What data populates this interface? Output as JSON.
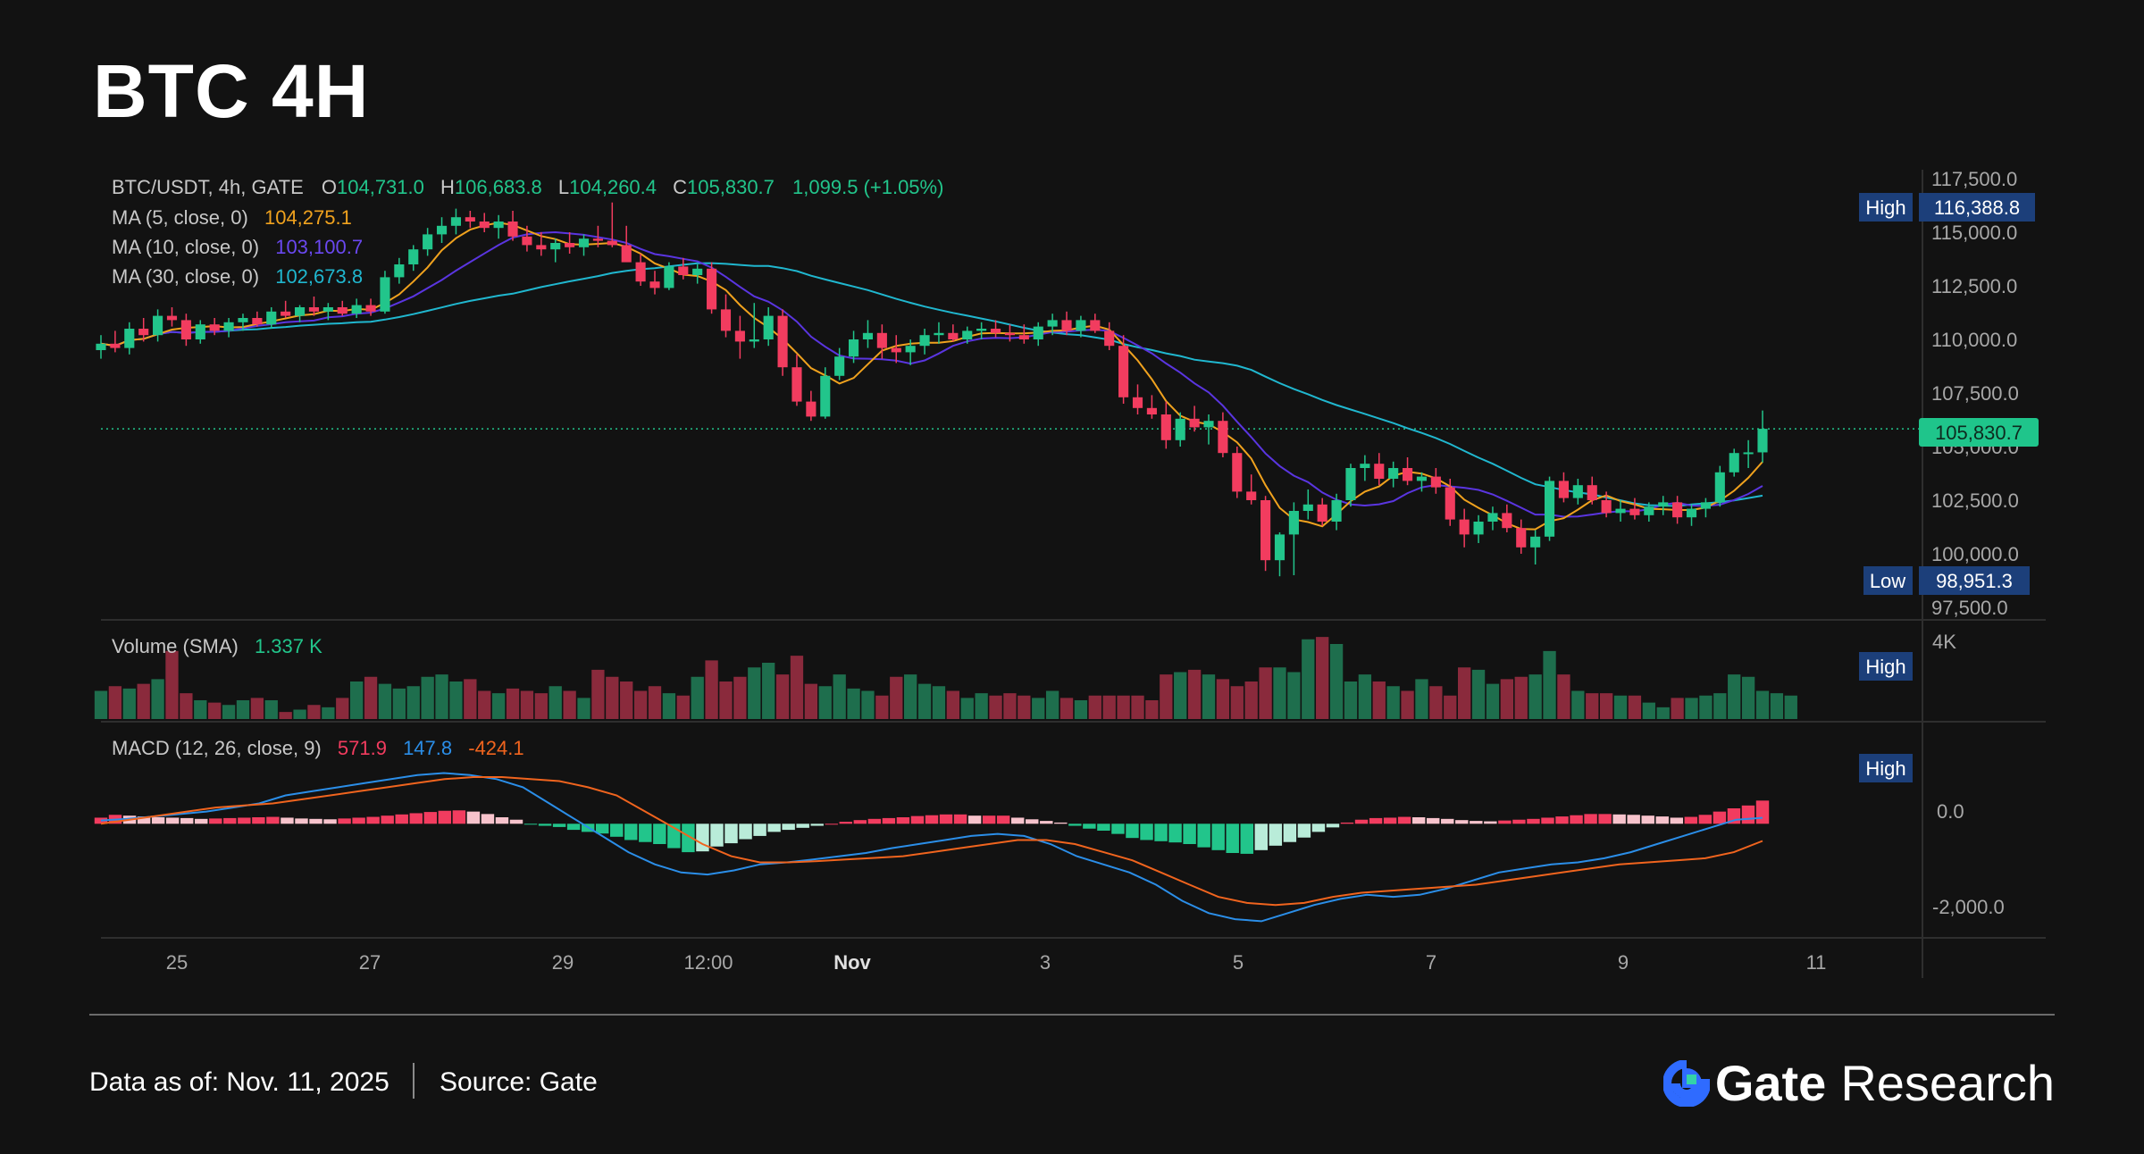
{
  "title": "BTC 4H",
  "legend": {
    "symbol": "BTC/USDT, 4h, GATE",
    "o_label": "O",
    "o_value": "104,731.0",
    "h_label": "H",
    "h_value": "106,683.8",
    "l_label": "L",
    "l_value": "104,260.4",
    "c_label": "C",
    "c_value": "105,830.7",
    "change": "1,099.5 (+1.05%)",
    "ma5_label": "MA (5, close, 0)",
    "ma5_value": "104,275.1",
    "ma10_label": "MA (10, close, 0)",
    "ma10_value": "103,100.7",
    "ma30_label": "MA (30, close, 0)",
    "ma30_value": "102,673.8"
  },
  "price_axis": {
    "ticks": [
      "117,500.0",
      "115,000.0",
      "112,500.0",
      "110,000.0",
      "107,500.0",
      "105,000.0",
      "102,500.0",
      "100,000.0",
      "97,500.0"
    ],
    "high_label": "High",
    "high_value": "116,388.8",
    "low_label": "Low",
    "low_value": "98,951.3",
    "last_value": "105,830.7"
  },
  "volume": {
    "label": "Volume (SMA)",
    "value": "1.337 K",
    "axis_tick": "4K",
    "high_label": "High"
  },
  "macd": {
    "label": "MACD (12, 26, close, 9)",
    "hist_value": "571.9",
    "macd_value": "147.8",
    "signal_value": "-424.1",
    "axis_ticks": [
      "0.0",
      "-2,000.0"
    ],
    "high_label": "High"
  },
  "time_axis": {
    "labels": [
      "25",
      "27",
      "29",
      "12:00",
      "Nov",
      "3",
      "5",
      "7",
      "9",
      "11"
    ]
  },
  "footer": {
    "date": "Data as of: Nov. 11, 2025",
    "source": "Source:  Gate",
    "brand_name": "Gate",
    "brand_sub": "Research"
  },
  "colors": {
    "up": "#22c58b",
    "down": "#f23c5f",
    "ma5": "#f0a21e",
    "ma10": "#5a35e0",
    "ma30": "#20b7cf",
    "macd": "#2b8ee8",
    "signal": "#f0641e"
  },
  "chart_data": {
    "type": "candlestick",
    "interval": "4h",
    "ylim": [
      97500,
      117500
    ],
    "candles": [
      [
        109500,
        110200,
        109100,
        109800
      ],
      [
        109800,
        110400,
        109400,
        109600
      ],
      [
        109600,
        110800,
        109300,
        110500
      ],
      [
        110500,
        111000,
        109900,
        110200
      ],
      [
        110200,
        111400,
        109900,
        111100
      ],
      [
        111100,
        111500,
        110600,
        110900
      ],
      [
        110900,
        111200,
        109700,
        110000
      ],
      [
        110000,
        110900,
        109800,
        110700
      ],
      [
        110700,
        111000,
        110200,
        110400
      ],
      [
        110400,
        111000,
        110100,
        110800
      ],
      [
        110800,
        111200,
        110400,
        111000
      ],
      [
        111000,
        111300,
        110600,
        110700
      ],
      [
        110700,
        111500,
        110500,
        111300
      ],
      [
        111300,
        111800,
        111000,
        111100
      ],
      [
        111100,
        111600,
        110800,
        111500
      ],
      [
        111500,
        112000,
        111100,
        111300
      ],
      [
        111300,
        111700,
        110900,
        111500
      ],
      [
        111500,
        111800,
        111100,
        111200
      ],
      [
        111200,
        111900,
        111000,
        111600
      ],
      [
        111600,
        111900,
        111100,
        111300
      ],
      [
        111300,
        113200,
        111200,
        112900
      ],
      [
        112900,
        113800,
        112600,
        113500
      ],
      [
        113500,
        114400,
        113200,
        114200
      ],
      [
        114200,
        115200,
        113900,
        114900
      ],
      [
        114900,
        115700,
        114500,
        115300
      ],
      [
        115300,
        116100,
        114900,
        115700
      ],
      [
        115700,
        116000,
        115200,
        115500
      ],
      [
        115500,
        115900,
        115000,
        115200
      ],
      [
        115200,
        115800,
        114700,
        115500
      ],
      [
        115500,
        116000,
        114600,
        114800
      ],
      [
        114800,
        115300,
        114100,
        114400
      ],
      [
        114400,
        115000,
        113900,
        114200
      ],
      [
        114200,
        114700,
        113600,
        114500
      ],
      [
        114500,
        115000,
        114000,
        114300
      ],
      [
        114300,
        114900,
        113900,
        114700
      ],
      [
        114700,
        115300,
        114300,
        114600
      ],
      [
        114600,
        116388,
        114300,
        114400
      ],
      [
        114400,
        115300,
        113800,
        113600
      ],
      [
        113600,
        114000,
        112500,
        112700
      ],
      [
        112700,
        113200,
        112100,
        112400
      ],
      [
        112400,
        113600,
        112300,
        113400
      ],
      [
        113400,
        113800,
        112800,
        113000
      ],
      [
        113000,
        113500,
        112600,
        113300
      ],
      [
        113300,
        113600,
        111200,
        111400
      ],
      [
        111400,
        112100,
        110100,
        110400
      ],
      [
        110400,
        111100,
        109100,
        109900
      ],
      [
        109900,
        111700,
        109600,
        110000
      ],
      [
        110000,
        111500,
        109700,
        111100
      ],
      [
        111100,
        111400,
        108300,
        108700
      ],
      [
        108700,
        109300,
        106900,
        107100
      ],
      [
        107100,
        107600,
        106200,
        106400
      ],
      [
        106400,
        108700,
        106300,
        108300
      ],
      [
        108300,
        109600,
        108100,
        109200
      ],
      [
        109200,
        110400,
        108900,
        110000
      ],
      [
        110000,
        110900,
        109600,
        110300
      ],
      [
        110300,
        110700,
        109100,
        109600
      ],
      [
        109600,
        110200,
        108900,
        109400
      ],
      [
        109400,
        110000,
        108800,
        109700
      ],
      [
        109700,
        110500,
        109300,
        110200
      ],
      [
        110200,
        110800,
        109800,
        110300
      ],
      [
        110300,
        110700,
        109900,
        110000
      ],
      [
        110000,
        110600,
        109800,
        110400
      ],
      [
        110400,
        110800,
        110000,
        110500
      ],
      [
        110500,
        110900,
        110100,
        110300
      ],
      [
        110300,
        110700,
        109900,
        110200
      ],
      [
        110200,
        110700,
        109800,
        110000
      ],
      [
        110000,
        110800,
        109700,
        110600
      ],
      [
        110600,
        111200,
        110200,
        110900
      ],
      [
        110900,
        111300,
        110200,
        110400
      ],
      [
        110400,
        111100,
        110100,
        110900
      ],
      [
        110900,
        111200,
        110300,
        110400
      ],
      [
        110400,
        110800,
        109500,
        109700
      ],
      [
        109700,
        110200,
        107000,
        107300
      ],
      [
        107300,
        107900,
        106500,
        106800
      ],
      [
        106800,
        107400,
        106300,
        106500
      ],
      [
        106500,
        107100,
        104900,
        105300
      ],
      [
        105300,
        106600,
        105000,
        106300
      ],
      [
        106300,
        106900,
        105700,
        105900
      ],
      [
        105900,
        106500,
        105100,
        106200
      ],
      [
        106200,
        106600,
        104500,
        104700
      ],
      [
        104700,
        105000,
        102600,
        102900
      ],
      [
        102900,
        103700,
        102300,
        102500
      ],
      [
        102500,
        102700,
        99200,
        99700
      ],
      [
        99700,
        101000,
        98951,
        100900
      ],
      [
        100900,
        102400,
        99000,
        102000
      ],
      [
        102000,
        103000,
        101600,
        102300
      ],
      [
        102300,
        102600,
        101300,
        101500
      ],
      [
        101500,
        102800,
        101100,
        102500
      ],
      [
        102500,
        104200,
        102200,
        104000
      ],
      [
        104000,
        104600,
        103400,
        104200
      ],
      [
        104200,
        104700,
        103200,
        103500
      ],
      [
        103500,
        104300,
        103100,
        104000
      ],
      [
        104000,
        104500,
        103200,
        103400
      ],
      [
        103400,
        103800,
        102900,
        103600
      ],
      [
        103600,
        104000,
        102800,
        103100
      ],
      [
        103100,
        103500,
        101300,
        101600
      ],
      [
        101600,
        102100,
        100300,
        100900
      ],
      [
        100900,
        101800,
        100500,
        101500
      ],
      [
        101500,
        102200,
        101100,
        101900
      ],
      [
        101900,
        102300,
        101000,
        101200
      ],
      [
        101200,
        101600,
        100000,
        100300
      ],
      [
        100300,
        101100,
        99500,
        100800
      ],
      [
        100800,
        103600,
        100600,
        103400
      ],
      [
        103400,
        103800,
        102400,
        102600
      ],
      [
        102600,
        103500,
        102300,
        103200
      ],
      [
        103200,
        103600,
        102300,
        102500
      ],
      [
        102500,
        102900,
        101700,
        101900
      ],
      [
        101900,
        102500,
        101500,
        102100
      ],
      [
        102100,
        102600,
        101600,
        101800
      ],
      [
        101800,
        102400,
        101500,
        102200
      ],
      [
        102200,
        102700,
        101800,
        102400
      ],
      [
        102400,
        102700,
        101400,
        101700
      ],
      [
        101700,
        102300,
        101300,
        102100
      ],
      [
        102100,
        102600,
        101700,
        102400
      ],
      [
        102400,
        104100,
        102200,
        103800
      ],
      [
        103800,
        104900,
        103600,
        104700
      ],
      [
        104700,
        105300,
        104000,
        104731
      ],
      [
        104731,
        106683,
        104260,
        105830
      ]
    ],
    "ma5_last": 104275.1,
    "ma10_last": 103100.7,
    "ma30_last": 102673.8,
    "volume_ylim": [
      0,
      4000
    ],
    "volume_values": [
      1200,
      1400,
      1300,
      1500,
      1700,
      2900,
      1100,
      800,
      700,
      600,
      800,
      900,
      800,
      300,
      400,
      600,
      500,
      900,
      1600,
      1800,
      1500,
      1300,
      1400,
      1800,
      1900,
      1600,
      1700,
      1200,
      1100,
      1300,
      1200,
      1100,
      1400,
      1200,
      900,
      2100,
      1800,
      1600,
      1200,
      1400,
      1100,
      1000,
      1800,
      2500,
      1600,
      1800,
      2200,
      2400,
      1900,
      2700,
      1500,
      1400,
      1900,
      1300,
      1200,
      1000,
      1800,
      1900,
      1500,
      1400,
      1200,
      900,
      1100,
      1000,
      1100,
      1000,
      900,
      1200,
      900,
      800,
      1000,
      1000,
      1000,
      1000,
      800,
      1900,
      2000,
      2100,
      1900,
      1700,
      1400,
      1600,
      2200,
      2200,
      2000,
      3400,
      3500,
      3200,
      1600,
      1900,
      1600,
      1400,
      1200,
      1700,
      1400,
      1000,
      2200,
      2100,
      1500,
      1700,
      1800,
      1900,
      2900,
      1900,
      1200,
      1100,
      1100,
      1000,
      1000,
      700,
      500,
      900,
      900,
      1000,
      1100,
      1900,
      1800,
      1200,
      1100,
      1000
    ],
    "macd_ylim": [
      -2700,
      1700
    ],
    "histogram": [
      150,
      220,
      200,
      180,
      160,
      150,
      140,
      120,
      130,
      140,
      150,
      160,
      170,
      150,
      130,
      120,
      110,
      130,
      150,
      170,
      200,
      230,
      260,
      290,
      320,
      330,
      300,
      240,
      160,
      100,
      -20,
      -50,
      -80,
      -150,
      -200,
      -240,
      -320,
      -400,
      -450,
      -500,
      -600,
      -700,
      -680,
      -560,
      -480,
      -380,
      -300,
      -200,
      -150,
      -100,
      -50,
      0,
      50,
      90,
      120,
      140,
      160,
      190,
      210,
      230,
      230,
      200,
      200,
      200,
      150,
      110,
      70,
      30,
      -50,
      -120,
      -170,
      -250,
      -350,
      -400,
      -430,
      -460,
      -500,
      -580,
      -650,
      -720,
      -740,
      -650,
      -540,
      -450,
      -340,
      -200,
      -90,
      30,
      100,
      140,
      150,
      170,
      160,
      140,
      120,
      90,
      70,
      60,
      80,
      100,
      120,
      150,
      180,
      210,
      240,
      240,
      230,
      220,
      200,
      180,
      150,
      170,
      220,
      300,
      380,
      450,
      571
    ],
    "macd_line": [
      80,
      120,
      180,
      240,
      300,
      400,
      500,
      700,
      800,
      900,
      1000,
      1100,
      1200,
      1250,
      1200,
      1100,
      900,
      500,
      100,
      -300,
      -700,
      -1000,
      -1200,
      -1250,
      -1150,
      -1000,
      -950,
      -880,
      -800,
      -720,
      -600,
      -500,
      -400,
      -300,
      -250,
      -300,
      -500,
      -800,
      -1000,
      -1200,
      -1500,
      -1900,
      -2200,
      -2350,
      -2400,
      -2200,
      -2000,
      -1850,
      -1750,
      -1800,
      -1750,
      -1600,
      -1400,
      -1200,
      -1100,
      -1000,
      -950,
      -850,
      -700,
      -500,
      -300,
      -100,
      100,
      147.8
    ],
    "signal_line": [
      0,
      100,
      200,
      300,
      400,
      450,
      500,
      600,
      700,
      800,
      900,
      1000,
      1100,
      1150,
      1150,
      1100,
      1050,
      900,
      700,
      300,
      -100,
      -500,
      -800,
      -950,
      -950,
      -920,
      -880,
      -840,
      -800,
      -700,
      -600,
      -500,
      -400,
      -400,
      -500,
      -700,
      -900,
      -1200,
      -1500,
      -1800,
      -1950,
      -2000,
      -1950,
      -1800,
      -1700,
      -1650,
      -1600,
      -1550,
      -1500,
      -1400,
      -1300,
      -1200,
      -1100,
      -1000,
      -950,
      -900,
      -850,
      -700,
      -424.1
    ],
    "grid": false
  }
}
